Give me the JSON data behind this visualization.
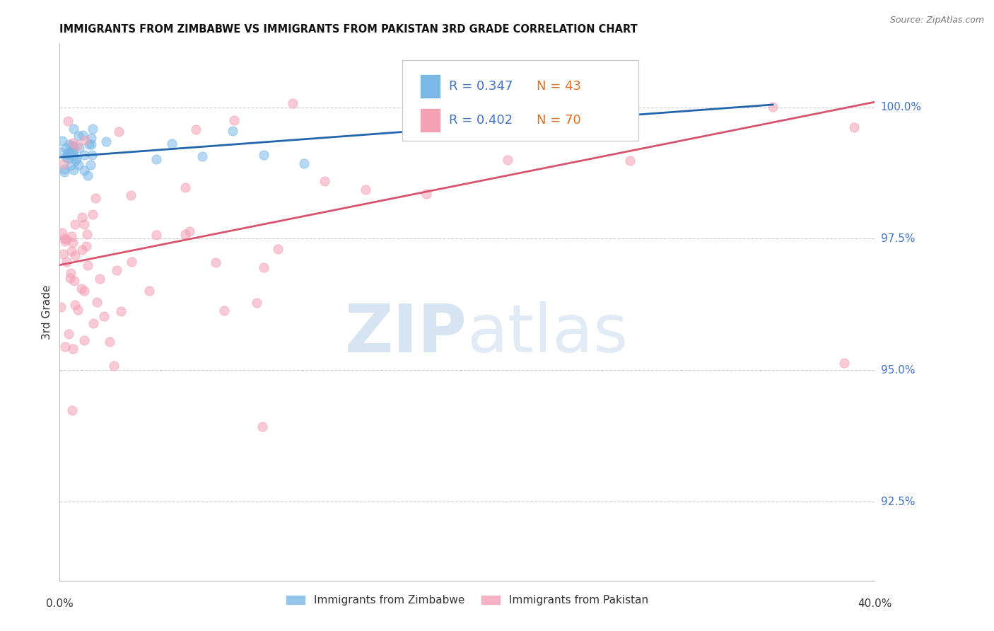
{
  "title": "IMMIGRANTS FROM ZIMBABWE VS IMMIGRANTS FROM PAKISTAN 3RD GRADE CORRELATION CHART",
  "source": "Source: ZipAtlas.com",
  "ylabel": "3rd Grade",
  "yaxis_labels": [
    "100.0%",
    "97.5%",
    "95.0%",
    "92.5%"
  ],
  "yaxis_values": [
    100.0,
    97.5,
    95.0,
    92.5
  ],
  "ylim_bottom": 91.0,
  "ylim_top": 101.2,
  "xlim_left": 0.0,
  "xlim_right": 40.0,
  "color_zimbabwe": "#7ab8e8",
  "color_pakistan": "#f4a0b5",
  "line_color_zimbabwe": "#2166ac",
  "line_color_pakistan": "#d6546e",
  "legend_zim_r": "R = 0.347",
  "legend_zim_n": "N = 43",
  "legend_pak_r": "R = 0.402",
  "legend_pak_n": "N = 70",
  "watermark_zip": "ZIP",
  "watermark_atlas": "atlas",
  "legend_label_zimbabwe": "Immigrants from Zimbabwe",
  "legend_label_pakistan": "Immigrants from Pakistan",
  "title_fontsize": 10.5,
  "axis_label_color": "#4472c4",
  "marker_size": 90,
  "marker_alpha": 0.55,
  "zim_trendline_x0": 0.0,
  "zim_trendline_y0": 99.05,
  "zim_trendline_x1": 35.0,
  "zim_trendline_y1": 100.05,
  "pak_trendline_x0": 0.0,
  "pak_trendline_y0": 97.0,
  "pak_trendline_x1": 40.0,
  "pak_trendline_y1": 100.1
}
